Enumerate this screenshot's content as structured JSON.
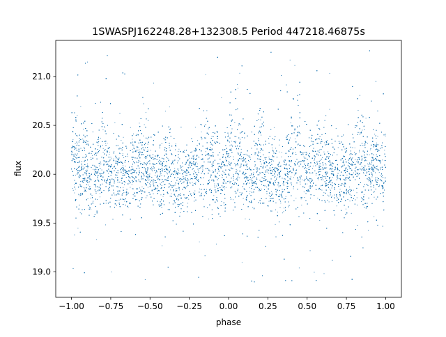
{
  "chart_data": {
    "type": "scatter",
    "title": "1SWASPJ162248.28+132308.5 Period 447218.46875s",
    "xlabel": "phase",
    "ylabel": "flux",
    "xlim": [
      -1.1,
      1.1
    ],
    "ylim": [
      18.74,
      21.37
    ],
    "x_ticks": [
      -1.0,
      -0.75,
      -0.5,
      -0.25,
      0.0,
      0.25,
      0.5,
      0.75,
      1.0
    ],
    "x_tick_labels": [
      "−1.00",
      "−0.75",
      "−0.50",
      "−0.25",
      "0.00",
      "0.25",
      "0.50",
      "0.75",
      "1.00"
    ],
    "y_ticks": [
      19.0,
      19.5,
      20.0,
      20.5,
      21.0
    ],
    "y_tick_labels": [
      "19.0",
      "19.5",
      "20.0",
      "20.5",
      "21.0"
    ],
    "grid": false,
    "legend": "none",
    "series": [
      {
        "color": "#1f77b4",
        "marker": "point",
        "point_count_approx": 20000,
        "x_range": [
          -1.0,
          1.0
        ],
        "central_flux": 20.02,
        "flux_range": [
          18.87,
          21.27
        ],
        "envelope": {
          "x": [
            -1.0,
            -0.95,
            -0.9,
            -0.85,
            -0.8,
            -0.75,
            -0.7,
            -0.65,
            -0.6,
            -0.55,
            -0.5,
            -0.45,
            -0.4,
            -0.35,
            -0.3,
            -0.25,
            -0.2,
            -0.15,
            -0.1,
            -0.05,
            0.0,
            0.05,
            0.1,
            0.15,
            0.2,
            0.25,
            0.3,
            0.35,
            0.4,
            0.45,
            0.5,
            0.55,
            0.6,
            0.65,
            0.7,
            0.75,
            0.8,
            0.85,
            0.9,
            0.95,
            1.0
          ],
          "upper": [
            20.45,
            20.65,
            20.5,
            20.35,
            20.75,
            20.3,
            20.4,
            20.35,
            20.45,
            20.7,
            20.35,
            20.3,
            20.5,
            20.45,
            20.25,
            20.3,
            20.45,
            20.7,
            20.5,
            20.35,
            20.5,
            20.7,
            20.45,
            20.3,
            20.75,
            20.35,
            20.45,
            20.35,
            20.7,
            20.75,
            20.35,
            20.45,
            20.55,
            20.35,
            20.4,
            20.35,
            20.45,
            20.75,
            20.4,
            20.5,
            20.4
          ],
          "lower": [
            19.75,
            19.5,
            19.55,
            19.55,
            19.6,
            19.65,
            19.55,
            19.6,
            19.65,
            19.55,
            19.7,
            19.65,
            19.6,
            19.5,
            19.55,
            19.6,
            19.65,
            19.55,
            19.6,
            19.6,
            19.6,
            19.55,
            19.6,
            19.6,
            19.55,
            19.6,
            19.6,
            19.55,
            19.6,
            19.55,
            19.6,
            19.65,
            19.55,
            19.6,
            19.55,
            19.6,
            19.55,
            19.5,
            19.6,
            19.65,
            19.6
          ]
        }
      }
    ]
  }
}
